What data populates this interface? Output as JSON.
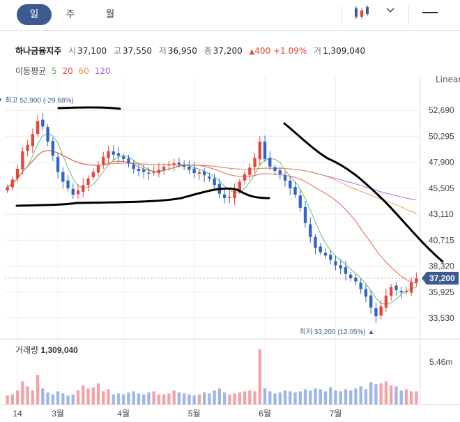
{
  "tabs": [
    {
      "label": "일",
      "active": true
    },
    {
      "label": "주",
      "active": false
    },
    {
      "label": "월",
      "active": false
    }
  ],
  "header": {
    "stock_name": "하나금융지주",
    "open_label": "시",
    "open": "37,100",
    "high_label": "고",
    "high": "37,550",
    "low_label": "저",
    "low": "36,950",
    "close_label": "종",
    "close": "37,200",
    "change": "400",
    "change_pct": "+1.09%",
    "volume_label": "거",
    "volume": "1,309,040"
  },
  "ma_legend": {
    "label": "이동평균",
    "periods": [
      {
        "p": "5",
        "color": "#4caf50"
      },
      {
        "p": "20",
        "color": "#e8443a"
      },
      {
        "p": "60",
        "color": "#f08c3a"
      },
      {
        "p": "120",
        "color": "#9b59d0"
      }
    ]
  },
  "scale_mode": "Linear",
  "colors": {
    "up": "#e8443a",
    "down": "#2f64c8",
    "price_tag": "#3d5a8e",
    "volume_up": "#f2a3a8",
    "volume_down": "#9fb6e6"
  },
  "chart_data": {
    "type": "candlestick",
    "ylim": [
      32500,
      54500
    ],
    "y_ticks": [
      "52,690",
      "50,295",
      "47,900",
      "45,505",
      "43,110",
      "40,715",
      "38,320",
      "35,925",
      "33,530"
    ],
    "y_tick_values": [
      52690,
      50295,
      47900,
      45505,
      43110,
      40715,
      38320,
      35925,
      33530
    ],
    "x_labels": [
      "14",
      "3월",
      "4월",
      "5월",
      "6월",
      "7월"
    ],
    "x_label_index": [
      2,
      10,
      23,
      37,
      51,
      65
    ],
    "max_label": "최고 52,900 (-29.68%)",
    "max_value": 52900,
    "min_label": "최저 33,200 (12.05%)",
    "min_value": 33200,
    "current_price_label": "37,200",
    "current_price": 37200,
    "closes": [
      45600,
      46300,
      47300,
      48900,
      49500,
      50500,
      51700,
      51200,
      49800,
      48500,
      47000,
      46100,
      45500,
      44900,
      45300,
      45800,
      46400,
      47000,
      47600,
      48400,
      48900,
      48600,
      48500,
      48200,
      47800,
      47300,
      47100,
      47000,
      46900,
      47000,
      47200,
      47500,
      47700,
      47800,
      47700,
      47500,
      47200,
      46900,
      47000,
      46700,
      46400,
      45800,
      45000,
      44600,
      44700,
      45300,
      46100,
      46800,
      47400,
      48300,
      49800,
      48200,
      47500,
      47100,
      46800,
      46200,
      45500,
      44900,
      43700,
      42300,
      41000,
      40000,
      39600,
      39300,
      38900,
      38400,
      38100,
      37600,
      37200,
      36900,
      36200,
      35500,
      34500,
      33700,
      34600,
      35600,
      36400,
      36100,
      35900,
      36000,
      36800,
      37200
    ],
    "volume_label": "거래량",
    "volume_value": "1,309,040",
    "volume_axis_label": "5.46m",
    "volume_max": 6200000,
    "volumes": [
      0.9,
      1.0,
      1.4,
      2.3,
      1.8,
      1.4,
      2.9,
      1.6,
      1.2,
      1.0,
      1.3,
      1.1,
      0.9,
      1.0,
      1.4,
      1.9,
      1.6,
      1.7,
      2.1,
      1.3,
      1.5,
      1.0,
      1.1,
      1.0,
      1.2,
      1.3,
      1.1,
      1.0,
      1.2,
      1.3,
      1.0,
      1.0,
      1.1,
      1.4,
      1.2,
      1.1,
      1.0,
      0.9,
      1.0,
      1.2,
      1.1,
      1.4,
      1.6,
      1.2,
      1.0,
      1.1,
      1.2,
      1.3,
      1.4,
      1.3,
      5.46,
      1.6,
      1.3,
      1.1,
      1.2,
      1.4,
      1.3,
      1.2,
      1.3,
      1.5,
      1.4,
      1.6,
      1.5,
      1.3,
      1.7,
      1.4,
      1.3,
      1.5,
      1.4,
      1.6,
      1.8,
      1.5,
      2.2,
      2.0,
      2.1,
      2.3,
      1.9,
      1.8,
      1.4,
      1.5,
      1.3,
      1.3
    ]
  }
}
